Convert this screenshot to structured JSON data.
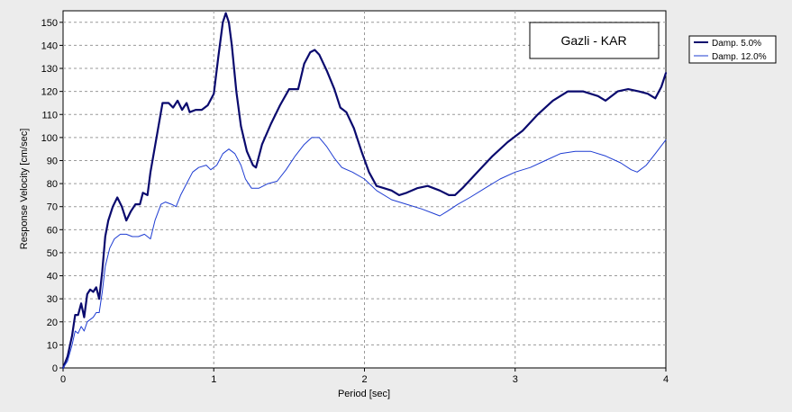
{
  "chart_data": {
    "type": "line",
    "title": "Gazli - KAR",
    "xlabel": "Period [sec]",
    "ylabel": "Response Velocity [cm/sec]",
    "xlim": [
      0,
      4
    ],
    "ylim": [
      0,
      155
    ],
    "x_ticks": [
      "0",
      "1",
      "2",
      "3",
      "4"
    ],
    "y_ticks": [
      "0",
      "10",
      "20",
      "30",
      "40",
      "50",
      "60",
      "70",
      "80",
      "90",
      "100",
      "110",
      "120",
      "130",
      "140",
      "150"
    ],
    "grid": true,
    "legend_position": "outside-top-right",
    "series": [
      {
        "name": "Damp. 5.0%",
        "color": "#0a0a6e",
        "points": [
          [
            0,
            0
          ],
          [
            0.03,
            5
          ],
          [
            0.06,
            14
          ],
          [
            0.08,
            23
          ],
          [
            0.1,
            23
          ],
          [
            0.12,
            28
          ],
          [
            0.14,
            22
          ],
          [
            0.16,
            32
          ],
          [
            0.18,
            34
          ],
          [
            0.2,
            33
          ],
          [
            0.22,
            35
          ],
          [
            0.24,
            30
          ],
          [
            0.26,
            42
          ],
          [
            0.28,
            57
          ],
          [
            0.3,
            64
          ],
          [
            0.33,
            70
          ],
          [
            0.36,
            74
          ],
          [
            0.39,
            70
          ],
          [
            0.42,
            64
          ],
          [
            0.45,
            68
          ],
          [
            0.48,
            71
          ],
          [
            0.51,
            71
          ],
          [
            0.53,
            76
          ],
          [
            0.56,
            75
          ],
          [
            0.58,
            85
          ],
          [
            0.62,
            100
          ],
          [
            0.66,
            115
          ],
          [
            0.7,
            115
          ],
          [
            0.73,
            113
          ],
          [
            0.76,
            116
          ],
          [
            0.79,
            112
          ],
          [
            0.82,
            115
          ],
          [
            0.84,
            111
          ],
          [
            0.88,
            112
          ],
          [
            0.92,
            112
          ],
          [
            0.96,
            114
          ],
          [
            1.0,
            119
          ],
          [
            1.03,
            135
          ],
          [
            1.06,
            150
          ],
          [
            1.08,
            154
          ],
          [
            1.1,
            150
          ],
          [
            1.12,
            140
          ],
          [
            1.15,
            120
          ],
          [
            1.18,
            105
          ],
          [
            1.22,
            94
          ],
          [
            1.26,
            88
          ],
          [
            1.28,
            87
          ],
          [
            1.32,
            97
          ],
          [
            1.38,
            106
          ],
          [
            1.44,
            114
          ],
          [
            1.5,
            121
          ],
          [
            1.56,
            121
          ],
          [
            1.6,
            132
          ],
          [
            1.64,
            137
          ],
          [
            1.67,
            138
          ],
          [
            1.7,
            136
          ],
          [
            1.75,
            129
          ],
          [
            1.8,
            121
          ],
          [
            1.84,
            113
          ],
          [
            1.88,
            111
          ],
          [
            1.93,
            104
          ],
          [
            1.98,
            94
          ],
          [
            2.03,
            85
          ],
          [
            2.08,
            79
          ],
          [
            2.13,
            78
          ],
          [
            2.18,
            77
          ],
          [
            2.23,
            75
          ],
          [
            2.28,
            76
          ],
          [
            2.35,
            78
          ],
          [
            2.42,
            79
          ],
          [
            2.5,
            77
          ],
          [
            2.56,
            75
          ],
          [
            2.6,
            75
          ],
          [
            2.65,
            78
          ],
          [
            2.75,
            85
          ],
          [
            2.85,
            92
          ],
          [
            2.95,
            98
          ],
          [
            3.05,
            103
          ],
          [
            3.15,
            110
          ],
          [
            3.25,
            116
          ],
          [
            3.35,
            120
          ],
          [
            3.45,
            120
          ],
          [
            3.55,
            118
          ],
          [
            3.6,
            116
          ],
          [
            3.68,
            120
          ],
          [
            3.75,
            121
          ],
          [
            3.82,
            120
          ],
          [
            3.88,
            119
          ],
          [
            3.93,
            117
          ],
          [
            3.97,
            122
          ],
          [
            4.0,
            128
          ]
        ]
      },
      {
        "name": "Damp. 12.0%",
        "color": "#1e3cd2",
        "points": [
          [
            0,
            0
          ],
          [
            0.03,
            3
          ],
          [
            0.06,
            10
          ],
          [
            0.08,
            16
          ],
          [
            0.1,
            15
          ],
          [
            0.12,
            18
          ],
          [
            0.14,
            16
          ],
          [
            0.16,
            20
          ],
          [
            0.18,
            21
          ],
          [
            0.2,
            22
          ],
          [
            0.22,
            24
          ],
          [
            0.24,
            24
          ],
          [
            0.26,
            33
          ],
          [
            0.28,
            44
          ],
          [
            0.31,
            52
          ],
          [
            0.34,
            56
          ],
          [
            0.38,
            58
          ],
          [
            0.42,
            58
          ],
          [
            0.46,
            57
          ],
          [
            0.5,
            57
          ],
          [
            0.54,
            58
          ],
          [
            0.58,
            56
          ],
          [
            0.61,
            64
          ],
          [
            0.65,
            71
          ],
          [
            0.68,
            72
          ],
          [
            0.72,
            71
          ],
          [
            0.75,
            70
          ],
          [
            0.78,
            75
          ],
          [
            0.82,
            80
          ],
          [
            0.86,
            85
          ],
          [
            0.9,
            87
          ],
          [
            0.95,
            88
          ],
          [
            0.98,
            86
          ],
          [
            1.02,
            88
          ],
          [
            1.06,
            93
          ],
          [
            1.1,
            95
          ],
          [
            1.14,
            93
          ],
          [
            1.18,
            88
          ],
          [
            1.21,
            82
          ],
          [
            1.25,
            78
          ],
          [
            1.3,
            78
          ],
          [
            1.36,
            80
          ],
          [
            1.42,
            81
          ],
          [
            1.48,
            86
          ],
          [
            1.54,
            92
          ],
          [
            1.6,
            97
          ],
          [
            1.65,
            100
          ],
          [
            1.7,
            100
          ],
          [
            1.75,
            96
          ],
          [
            1.8,
            91
          ],
          [
            1.85,
            87
          ],
          [
            1.92,
            85
          ],
          [
            2.0,
            82
          ],
          [
            2.08,
            77
          ],
          [
            2.18,
            73
          ],
          [
            2.28,
            71
          ],
          [
            2.38,
            69
          ],
          [
            2.46,
            67
          ],
          [
            2.5,
            66
          ],
          [
            2.55,
            68
          ],
          [
            2.62,
            71
          ],
          [
            2.7,
            74
          ],
          [
            2.8,
            78
          ],
          [
            2.9,
            82
          ],
          [
            3.0,
            85
          ],
          [
            3.1,
            87
          ],
          [
            3.2,
            90
          ],
          [
            3.3,
            93
          ],
          [
            3.4,
            94
          ],
          [
            3.5,
            94
          ],
          [
            3.6,
            92
          ],
          [
            3.7,
            89
          ],
          [
            3.77,
            86
          ],
          [
            3.81,
            85
          ],
          [
            3.87,
            88
          ],
          [
            3.93,
            93
          ],
          [
            4.0,
            99
          ]
        ]
      }
    ]
  }
}
